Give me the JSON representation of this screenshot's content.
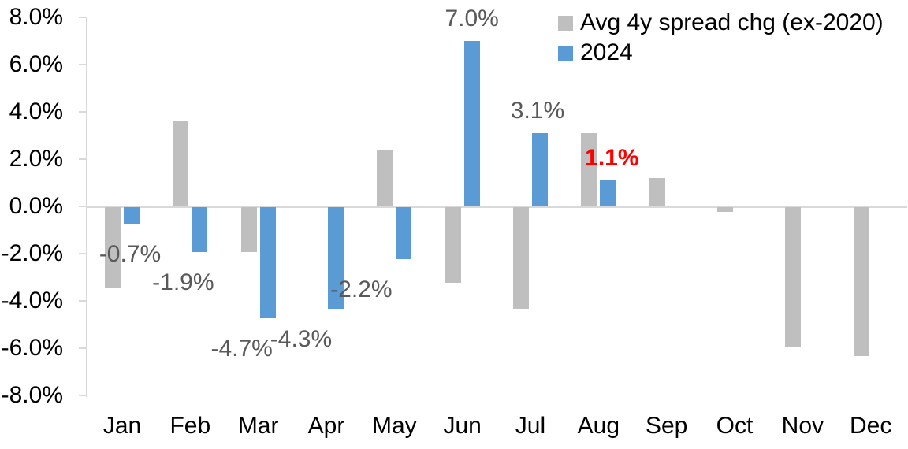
{
  "chart_data": {
    "type": "bar",
    "title": "",
    "categories": [
      "Jan",
      "Feb",
      "Mar",
      "Apr",
      "May",
      "Jun",
      "Jul",
      "Aug",
      "Sep",
      "Oct",
      "Nov",
      "Dec"
    ],
    "series": [
      {
        "name": "Avg 4y spread chg (ex-2020)",
        "color": "#BFBFBF",
        "values": [
          -3.4,
          3.6,
          -1.9,
          null,
          2.4,
          -3.2,
          -4.3,
          3.1,
          1.2,
          -0.2,
          -5.9,
          -6.3
        ]
      },
      {
        "name": "2024",
        "color": "#5B9BD5",
        "values": [
          -0.7,
          -1.9,
          -4.7,
          -4.3,
          -2.2,
          7.0,
          3.1,
          1.1,
          null,
          null,
          null,
          null
        ]
      }
    ],
    "data_labels": [
      {
        "category": "Jan",
        "text": "-0.7%",
        "color": "#595959",
        "bold": false
      },
      {
        "category": "Feb",
        "text": "-1.9%",
        "color": "#595959",
        "bold": false
      },
      {
        "category": "Mar",
        "text": "-4.7%",
        "color": "#595959",
        "bold": false
      },
      {
        "category": "Apr",
        "text": "-4.3%",
        "color": "#595959",
        "bold": false
      },
      {
        "category": "May",
        "text": "-2.2%",
        "color": "#595959",
        "bold": false
      },
      {
        "category": "Jun",
        "text": "7.0%",
        "color": "#595959",
        "bold": false
      },
      {
        "category": "Jul",
        "text": "3.1%",
        "color": "#595959",
        "bold": false
      },
      {
        "category": "Aug",
        "text": "1.1%",
        "color": "#FF0000",
        "bold": true
      }
    ],
    "y_axis": {
      "ticks": [
        "8.0%",
        "6.0%",
        "4.0%",
        "2.0%",
        "0.0%",
        "-2.0%",
        "-4.0%",
        "-6.0%",
        "-8.0%"
      ],
      "tick_values": [
        8,
        6,
        4,
        2,
        0,
        -2,
        -4,
        -6,
        -8
      ],
      "ylim": [
        -8,
        8
      ]
    },
    "grid": false,
    "legend_position": "top-right",
    "colors": {
      "axis_line": "#D9D9D9",
      "label_default": "#595959",
      "label_emphasis": "#FF0000",
      "series_gray": "#BFBFBF",
      "series_blue": "#5B9BD5"
    }
  }
}
